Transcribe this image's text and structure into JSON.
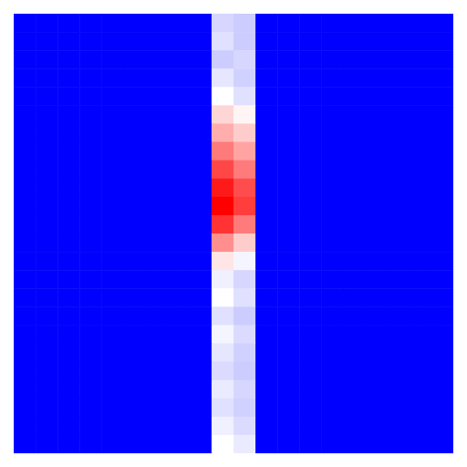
{
  "chart_data": {
    "type": "heatmap",
    "tick_labels": false,
    "xlim": [
      0,
      20
    ],
    "ylim": [
      0,
      24
    ],
    "color_range": [
      0,
      1
    ],
    "cells": [
      [
        0,
        0,
        0,
        0,
        0,
        0,
        0,
        0,
        0,
        0.42,
        0.4,
        0,
        0,
        0,
        0,
        0,
        0,
        0,
        0,
        0
      ],
      [
        0,
        0,
        0,
        0,
        0,
        0,
        0,
        0,
        0,
        0.44,
        0.4,
        0,
        0,
        0,
        0,
        0,
        0,
        0,
        0,
        0
      ],
      [
        0,
        0,
        0,
        0,
        0,
        0,
        0,
        0,
        0,
        0.4,
        0.42,
        0,
        0,
        0,
        0,
        0,
        0,
        0,
        0,
        0
      ],
      [
        0,
        0,
        0,
        0,
        0,
        0,
        0,
        0,
        0,
        0.45,
        0.41,
        0,
        0,
        0,
        0,
        0,
        0,
        0,
        0,
        0
      ],
      [
        0,
        0,
        0,
        0,
        0,
        0,
        0,
        0,
        0,
        0.5,
        0.44,
        0,
        0,
        0,
        0,
        0,
        0,
        0,
        0,
        0
      ],
      [
        0,
        0,
        0,
        0,
        0,
        0,
        0,
        0,
        0,
        0.58,
        0.52,
        0,
        0,
        0,
        0,
        0,
        0,
        0,
        0,
        0
      ],
      [
        0,
        0,
        0,
        0,
        0,
        0,
        0,
        0,
        0,
        0.66,
        0.6,
        0,
        0,
        0,
        0,
        0,
        0,
        0,
        0,
        0
      ],
      [
        0,
        0,
        0,
        0,
        0,
        0,
        0,
        0,
        0,
        0.76,
        0.68,
        0,
        0,
        0,
        0,
        0,
        0,
        0,
        0,
        0
      ],
      [
        0,
        0,
        0,
        0,
        0,
        0,
        0,
        0,
        0,
        0.86,
        0.76,
        0,
        0,
        0,
        0,
        0,
        0,
        0,
        0,
        0
      ],
      [
        0,
        0,
        0,
        0,
        0,
        0,
        0,
        0,
        0,
        0.95,
        0.85,
        0,
        0,
        0,
        0,
        0,
        0,
        0,
        0,
        0
      ],
      [
        0,
        0,
        0,
        0,
        0,
        0,
        0,
        0,
        0,
        1,
        0.88,
        0,
        0,
        0,
        0,
        0,
        0,
        0,
        0,
        0
      ],
      [
        0,
        0,
        0,
        0,
        0,
        0,
        0,
        0,
        0,
        0.9,
        0.76,
        0,
        0,
        0,
        0,
        0,
        0,
        0,
        0,
        0
      ],
      [
        0,
        0,
        0,
        0,
        0,
        0,
        0,
        0,
        0,
        0.72,
        0.6,
        0,
        0,
        0,
        0,
        0,
        0,
        0,
        0,
        0
      ],
      [
        0,
        0,
        0,
        0,
        0,
        0,
        0,
        0,
        0,
        0.55,
        0.48,
        0,
        0,
        0,
        0,
        0,
        0,
        0,
        0,
        0
      ],
      [
        0,
        0,
        0,
        0,
        0,
        0,
        0,
        0,
        0,
        0.47,
        0.42,
        0,
        0,
        0,
        0,
        0,
        0,
        0,
        0,
        0
      ],
      [
        0,
        0,
        0,
        0,
        0,
        0,
        0,
        0,
        0,
        0.5,
        0.44,
        0,
        0,
        0,
        0,
        0,
        0,
        0,
        0,
        0
      ],
      [
        0,
        0,
        0,
        0,
        0,
        0,
        0,
        0,
        0,
        0.44,
        0.4,
        0,
        0,
        0,
        0,
        0,
        0,
        0,
        0,
        0
      ],
      [
        0,
        0,
        0,
        0,
        0,
        0,
        0,
        0,
        0,
        0.48,
        0.43,
        0,
        0,
        0,
        0,
        0,
        0,
        0,
        0,
        0
      ],
      [
        0,
        0,
        0,
        0,
        0,
        0,
        0,
        0,
        0,
        0.45,
        0.41,
        0,
        0,
        0,
        0,
        0,
        0,
        0,
        0,
        0
      ],
      [
        0,
        0,
        0,
        0,
        0,
        0,
        0,
        0,
        0,
        0.43,
        0.4,
        0,
        0,
        0,
        0,
        0,
        0,
        0,
        0,
        0
      ],
      [
        0,
        0,
        0,
        0,
        0,
        0,
        0,
        0,
        0,
        0.46,
        0.42,
        0,
        0,
        0,
        0,
        0,
        0,
        0,
        0,
        0
      ],
      [
        0,
        0,
        0,
        0,
        0,
        0,
        0,
        0,
        0,
        0.44,
        0.41,
        0,
        0,
        0,
        0,
        0,
        0,
        0,
        0,
        0
      ],
      [
        0,
        0,
        0,
        0,
        0,
        0,
        0,
        0,
        0,
        0.47,
        0.43,
        0,
        0,
        0,
        0,
        0,
        0,
        0,
        0,
        0
      ],
      [
        0,
        0,
        0,
        0,
        0,
        0,
        0,
        0,
        0,
        0.5,
        0.46,
        0,
        0,
        0,
        0,
        0,
        0,
        0,
        0,
        0
      ]
    ]
  }
}
